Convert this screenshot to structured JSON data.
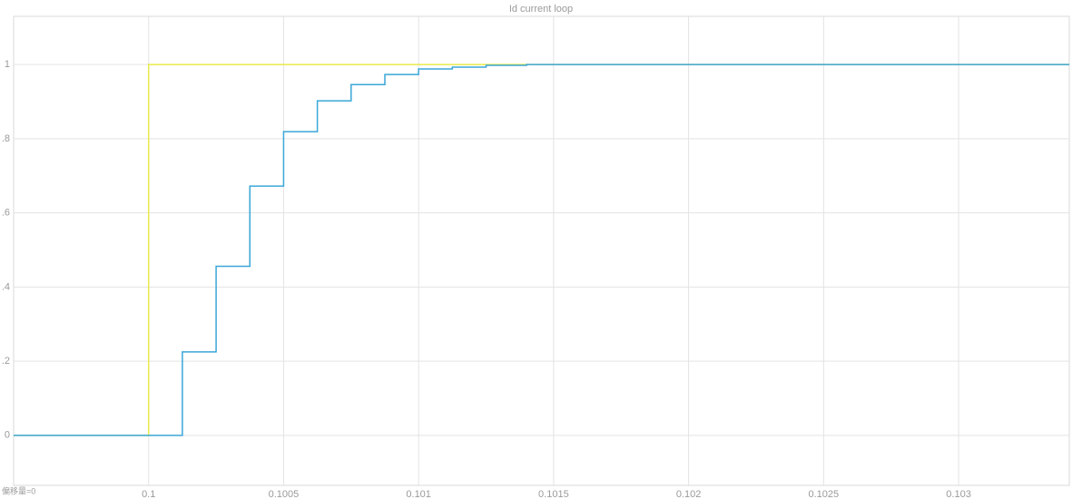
{
  "chart_data": {
    "type": "line",
    "title": "Id current loop",
    "annotation": "偏移量=0",
    "xlim": [
      0.0995,
      0.10341
    ],
    "xticks": [
      0.1,
      0.1005,
      0.101,
      0.1015,
      0.102,
      0.1025,
      0.103
    ],
    "ylim": [
      -0.135,
      1.13
    ],
    "yticks": [
      0,
      {
        "value": 0.2,
        "label": ".2"
      },
      {
        "value": 0.4,
        "label": ".4"
      },
      {
        "value": 0.6,
        "label": ".6"
      },
      {
        "value": 0.8,
        "label": ".8"
      },
      1
    ],
    "grid": true,
    "series": [
      {
        "color": "#e9e94a",
        "x": [
          0.0995,
          0.1,
          0.1,
          0.10341
        ],
        "values": [
          0,
          0,
          1,
          1
        ]
      },
      {
        "color": "#3aa6d8",
        "x": [
          0.0995,
          0.100125,
          0.100125,
          0.10025,
          0.10025,
          0.100375,
          0.100375,
          0.1005,
          0.1005,
          0.100625,
          0.100625,
          0.10075,
          0.10075,
          0.100875,
          0.100875,
          0.101,
          0.101,
          0.101125,
          0.101125,
          0.10125,
          0.10125,
          0.1014,
          0.1014,
          0.10341
        ],
        "values": [
          0,
          0,
          0.225,
          0.225,
          0.456,
          0.456,
          0.672,
          0.672,
          0.819,
          0.819,
          0.902,
          0.902,
          0.946,
          0.946,
          0.973,
          0.973,
          0.988,
          0.988,
          0.993,
          0.993,
          0.998,
          0.998,
          1.0,
          1.0
        ]
      }
    ]
  }
}
